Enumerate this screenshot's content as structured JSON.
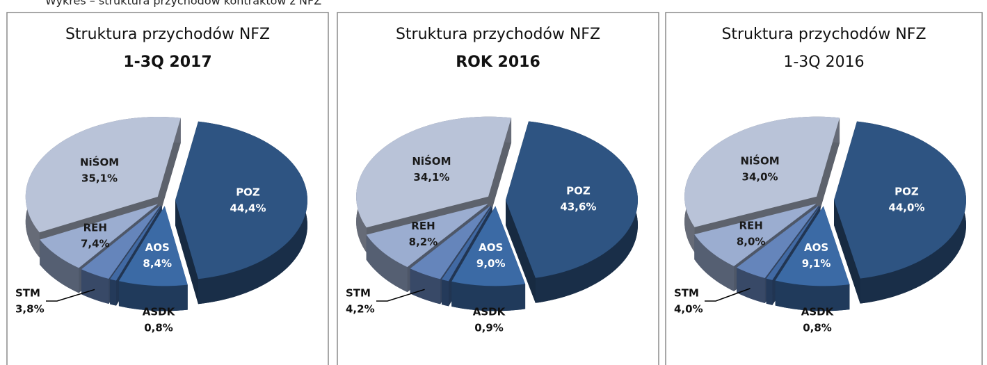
{
  "caption": "Wykres – struktura przychodów kontraktów z NFZ",
  "chart_data": [
    {
      "type": "pie",
      "title": "Struktura przychodów NFZ",
      "subtitle": "1-3Q 2017",
      "categories": [
        "POZ",
        "AOS",
        "ASDK",
        "STM",
        "REH",
        "NiŚOM"
      ],
      "values": [
        44.4,
        8.4,
        0.8,
        3.8,
        7.4,
        35.1
      ],
      "value_labels": [
        "44,4%",
        "8,4%",
        "0,8%",
        "3,8%",
        "7,4%",
        "35,1%"
      ],
      "colors": [
        "#2e5482",
        "#3b6aa5",
        "#4169a3",
        "#6585bb",
        "#9badd0",
        "#b9c3d8"
      ]
    },
    {
      "type": "pie",
      "title": "Struktura przychodów NFZ",
      "subtitle": "ROK 2016",
      "categories": [
        "POZ",
        "AOS",
        "ASDK",
        "STM",
        "REH",
        "NiŚOM"
      ],
      "values": [
        43.6,
        9.0,
        0.9,
        4.2,
        8.2,
        34.1
      ],
      "value_labels": [
        "43,6%",
        "9,0%",
        "0,9%",
        "4,2%",
        "8,2%",
        "34,1%"
      ],
      "colors": [
        "#2e5482",
        "#3b6aa5",
        "#4169a3",
        "#6585bb",
        "#9badd0",
        "#b9c3d8"
      ]
    },
    {
      "type": "pie",
      "title": "Struktura przychodów NFZ",
      "subtitle": "1-3Q 2016",
      "categories": [
        "POZ",
        "AOS",
        "ASDK",
        "STM",
        "REH",
        "NiŚOM"
      ],
      "values": [
        44.0,
        9.1,
        0.8,
        4.0,
        8.0,
        34.0
      ],
      "value_labels": [
        "44,0%",
        "9,1%",
        "0,8%",
        "4,0%",
        "8,0%",
        "34,0%"
      ],
      "colors": [
        "#2e5482",
        "#3b6aa5",
        "#4169a3",
        "#6585bb",
        "#9badd0",
        "#b9c3d8"
      ]
    }
  ]
}
